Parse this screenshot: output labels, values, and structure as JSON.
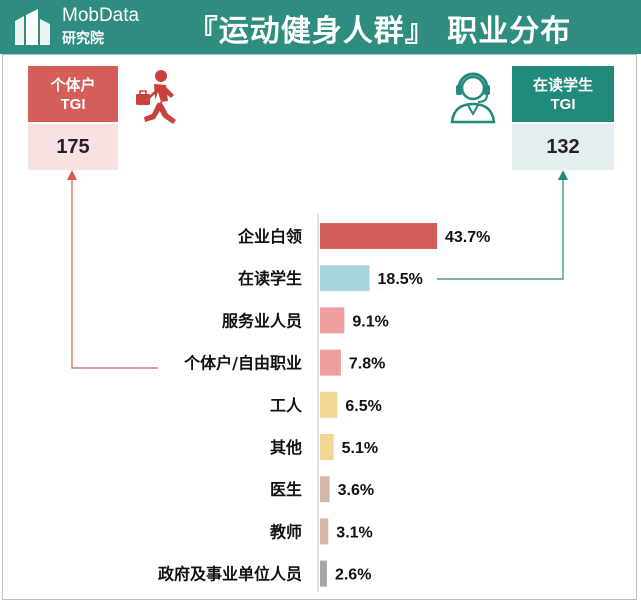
{
  "header": {
    "brand_name": "MobData",
    "brand_sub": "研究院",
    "title": "『运动健身人群』 职业分布",
    "color": "#2e8d7e"
  },
  "callouts": {
    "left": {
      "label_line1": "个体户",
      "label_line2": "TGI",
      "value": "175",
      "color": "#d55d5a",
      "icon": "running-businessman-icon"
    },
    "right": {
      "label_line1": "在读学生",
      "label_line2": "TGI",
      "value": "132",
      "color": "#218a7a",
      "icon": "headset-person-icon"
    }
  },
  "chart_data": {
    "type": "bar",
    "orientation": "horizontal",
    "categories": [
      "企业白领",
      "在读学生",
      "服务业人员",
      "个体户/自由职业",
      "工人",
      "其他",
      "医生",
      "教师",
      "政府及事业单位人员"
    ],
    "values": [
      43.7,
      18.5,
      9.1,
      7.8,
      6.5,
      5.1,
      3.6,
      3.1,
      2.6
    ],
    "value_labels": [
      "43.7%",
      "18.5%",
      "9.1%",
      "7.8%",
      "6.5%",
      "5.1%",
      "3.6%",
      "3.1%",
      "2.6%"
    ],
    "unit": "%",
    "bar_colors": [
      "#d55d5a",
      "#a8d4dc",
      "#ee9e9d",
      "#ee9e9d",
      "#f3d695",
      "#f3d695",
      "#d4b7a8",
      "#d4b7a8",
      "#a6a6a6"
    ],
    "grid": false,
    "legend": "none"
  }
}
